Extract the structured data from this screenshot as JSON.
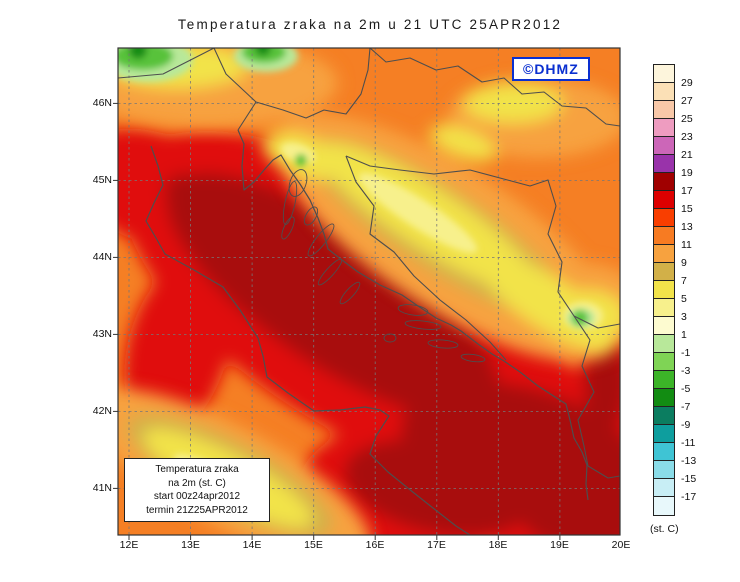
{
  "title": "Temperatura zraka na 2m u 21 UTC 25APR2012",
  "copyright": "©DHMZ",
  "info_box": {
    "line1": "Temperatura zraka",
    "line2": "na 2m (st. C)",
    "line3": "start 00z24apr2012",
    "line4": "termin 21Z25APR2012"
  },
  "axes": {
    "lat": [
      "46N",
      "45N",
      "44N",
      "43N",
      "42N",
      "41N"
    ],
    "lon": [
      "12E",
      "13E",
      "14E",
      "15E",
      "16E",
      "17E",
      "18E",
      "19E",
      "20E"
    ]
  },
  "colorbar": {
    "unit": "(st. C)",
    "labels": [
      "29",
      "27",
      "25",
      "23",
      "21",
      "19",
      "17",
      "15",
      "13",
      "11",
      "9",
      "7",
      "5",
      "3",
      "1",
      "-1",
      "-3",
      "-5",
      "-7",
      "-9",
      "-11",
      "-13",
      "-15",
      "-17"
    ],
    "colors": [
      "#fdf5dc",
      "#fbe0b6",
      "#f8c8a8",
      "#ee9cc0",
      "#cc66b8",
      "#9933aa",
      "#a00000",
      "#dd0000",
      "#f93e00",
      "#f77b22",
      "#f7a23f",
      "#d2b048",
      "#f2e34a",
      "#f7f08c",
      "#fdfbd0",
      "#b8e89a",
      "#7fd455",
      "#3cb428",
      "#128c12",
      "#0b7d60",
      "#0e9e9e",
      "#3fc4d4",
      "#8adce8",
      "#c8eef5",
      "#e8f8fb"
    ]
  },
  "chart_data": {
    "type": "heatmap",
    "title": "Temperatura zraka na 2m u 21 UTC 25APR2012",
    "legend_levels_c": [
      29,
      27,
      25,
      23,
      21,
      19,
      17,
      15,
      13,
      11,
      9,
      7,
      5,
      3,
      1,
      -1,
      -3,
      -5,
      -7,
      -9,
      -11,
      -13,
      -15,
      -17
    ],
    "unit": "(st. C)",
    "x_ticks": [
      "12E",
      "13E",
      "14E",
      "15E",
      "16E",
      "17E",
      "18E",
      "19E",
      "20E"
    ],
    "y_ticks": [
      "46N",
      "45N",
      "44N",
      "43N",
      "42N",
      "41N"
    ],
    "grid": "dashed",
    "legend_position": "right"
  }
}
